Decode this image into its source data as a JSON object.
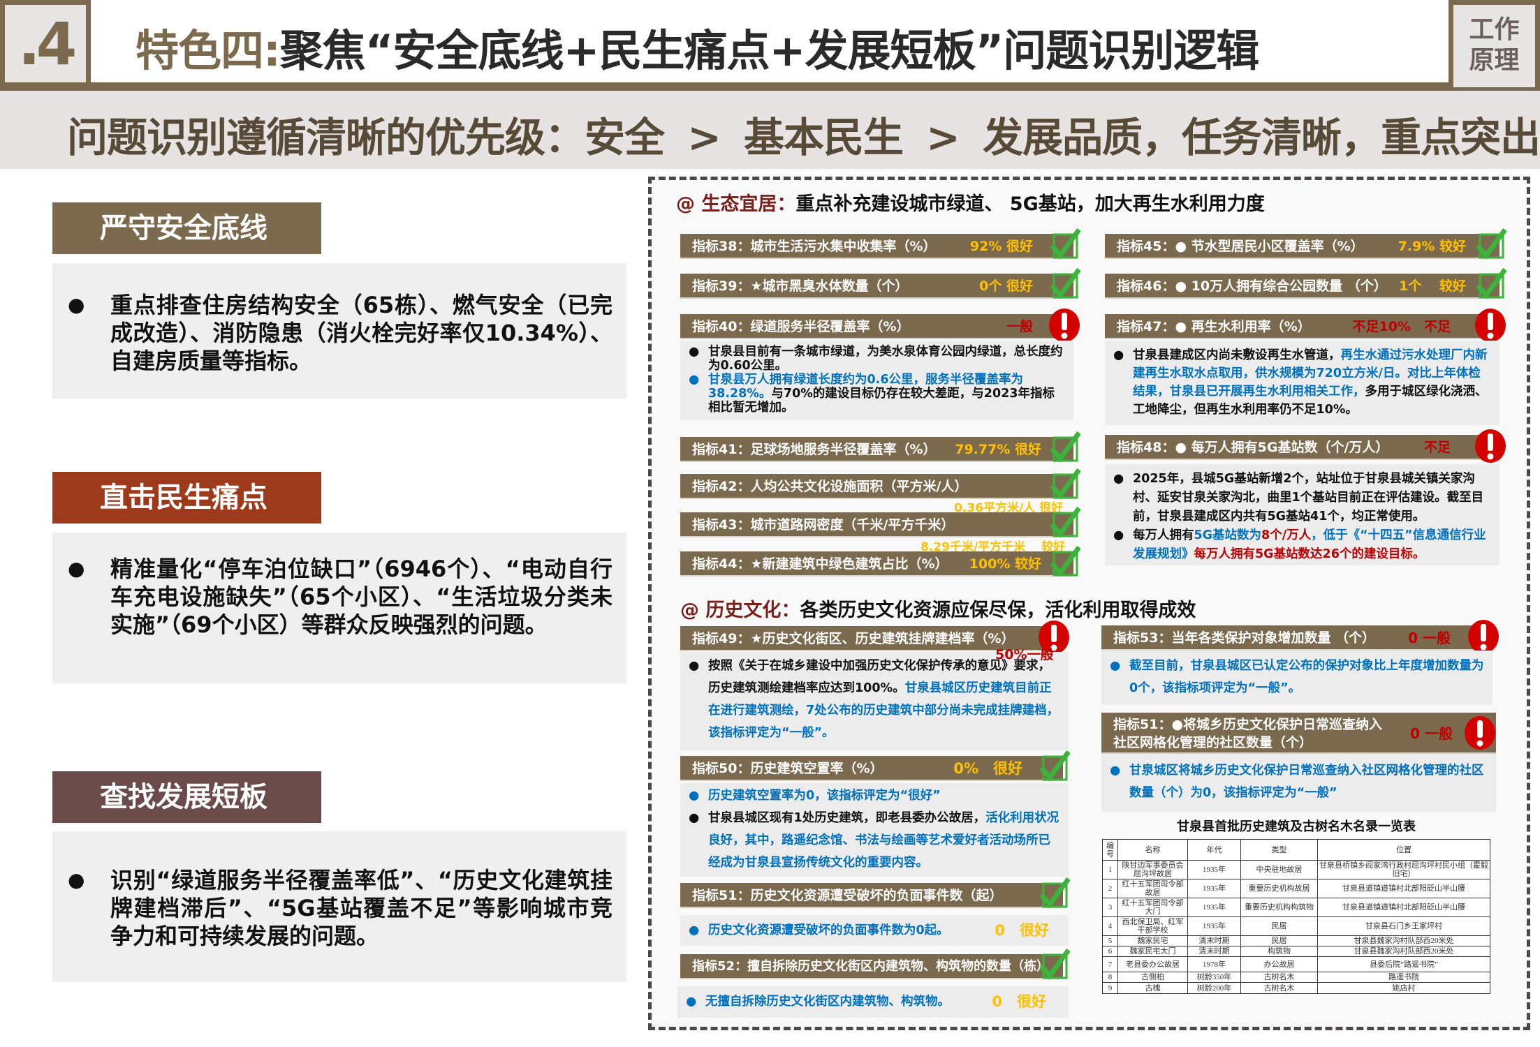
{
  "header": {
    "section_number": ".4",
    "title_prefix": "特色四:",
    "title_main": "聚焦“安全底线+民生痛点+发展短板”问题识别逻辑",
    "tag_line1": "工作",
    "tag_line2": "原理"
  },
  "subheader": {
    "text": "问题识别遵循清晰的优先级：安全 > 基本民生 > 发展品质，任务清晰，重点突出"
  },
  "colors": {
    "brand_brown": "#7b6a4e",
    "livelihood_red": "#9c3a1b",
    "development_mauve": "#6a4b49",
    "good": "#ffc000",
    "bad": "#c00000",
    "blue": "#0070c0",
    "check_green": "#3cb43c"
  },
  "left": {
    "sections": [
      {
        "label": "严守安全底线",
        "body": "重点排查住房结构安全（65栋）、燃气安全（已完成改造）、消防隐患（消火栓完好率仅10.34%）、自建房质量等指标。"
      },
      {
        "label": "直击民生痛点",
        "body": "精准量化“停车泊位缺口”（6946个）、“电动自行车充电设施缺失”（65个小区）、“生活垃圾分类未实施”（69个小区）等群众反映强烈的问题。"
      },
      {
        "label": "查找发展短板",
        "body": "识别“绿道服务半径覆盖率低”、“历史文化建筑挂牌建档滞后”、“5G基站覆盖不足”等影响城市竞争力和可持续发展的问题。"
      }
    ]
  },
  "eco": {
    "tag": "@ 生态宜居：",
    "title": "重点补充建设城市绿道、 5G基站，加大再生水利用力度",
    "indicators": [
      {
        "name": "指标38：城市生活污水集中收集率（%）",
        "value": "92% 很好",
        "status": "good"
      },
      {
        "name": "指标39：★城市黑臭水体数量（个）",
        "value": "0个 很好",
        "status": "good"
      },
      {
        "name": "指标40：绿道服务半径覆盖率（%）",
        "value": "一般",
        "status": "warn"
      },
      {
        "name": "指标41：足球场地服务半径覆盖率（%）",
        "value": "79.77% 很好",
        "status": "good"
      },
      {
        "name": "指标42：人均公共文化设施面积（平方米/人）",
        "value": "0.36平方米/人 很好",
        "status": "good"
      },
      {
        "name": "指标43：城市道路网密度（千米/平方千米）",
        "value": "8.29千米/平方千米　 较好",
        "status": "good"
      },
      {
        "name": "指标44：★新建建筑中绿色建筑占比（%）",
        "value": "100% 较好",
        "status": "good"
      },
      {
        "name": "指标45：● 节水型居民小区覆盖率（%）",
        "value": "7.9% 较好",
        "status": "good"
      },
      {
        "name": "指标46：● 10万人拥有综合公园数量 （个）",
        "value": "1个　 较好",
        "status": "good"
      },
      {
        "name": "指标47：● 再生水利用率（%）",
        "value": "不足10%　不足",
        "status": "warn"
      },
      {
        "name": "指标48：● 每万人拥有5G基站数（个/万人）",
        "value": "不足",
        "status": "warn"
      }
    ],
    "notes": {
      "n40": [
        [
          {
            "t": "甘泉县目前有一条城市绿道，为美水泉体育公园内绿道，总长度约为0.60公里。"
          }
        ],
        [
          {
            "t": "甘泉县万人拥有绿道长度约为0.6公里，服务半径覆盖率为38.28%。"
          },
          {
            "t": "与70%的建设目标仍存在较大差距，与2023年指标相比暂无增加。"
          }
        ]
      ],
      "n47": [
        [
          {
            "t": "甘泉县建成区内尚未敷设再生水管道，"
          },
          {
            "t": "再生水通过污水处理厂内新建再生水取水点取用，供水规模为720立方米/日。对比上年体检结果，甘泉县已开展再生水利用相关工作，"
          },
          {
            "t": "多用于城区绿化浇洒、工地降尘，但再生水利用率仍不足10%。"
          }
        ]
      ],
      "n48": [
        [
          {
            "t": "2025年，县城5G基站新增2个，站址位于甘泉县城关镇关家沟村、延安甘泉关家沟北，曲里1个基站目前正在评估建设。截至目前，甘泉县建成区内共有5G基站41个，均正常使用。"
          }
        ],
        [
          {
            "t": "每万人拥有"
          },
          {
            "t": "5G基站数为"
          },
          {
            "t": "8个/万人"
          },
          {
            "t": "，低于《“十四五”信息通信行业发展规划》"
          },
          {
            "t": "每万人拥有5G基站数达26个的建设目标。"
          }
        ]
      ]
    }
  },
  "hist": {
    "tag": "@ 历史文化：",
    "title": "各类历史文化资源应保尽保，活化利用取得成效",
    "indicators": [
      {
        "name": "指标49：★历史文化街区、历史建筑挂牌建档率（%）",
        "value": "50%一般",
        "status": "warn"
      },
      {
        "name": "指标50：历史建筑空置率（%）",
        "value": "0%　很好",
        "status": "good"
      },
      {
        "name": "指标51：历史文化资源遭受破坏的负面事件数（起）",
        "value": "0　很好",
        "status": "good"
      },
      {
        "name": "指标52：擅自拆除历史文化街区内建筑物、构筑物的数量（栋）",
        "value": "0　很好",
        "status": "good"
      },
      {
        "name": "指标53：当年各类保护对象增加数量 （个）",
        "value": "0 一般",
        "status": "warn"
      },
      {
        "name_line1": "指标51：●将城乡历史文化保护日常巡查纳入",
        "name_line2": "社区网格化管理的社区数量（个）",
        "value": "0 一般",
        "status": "warn"
      }
    ],
    "notes": {
      "n49": [
        [
          {
            "t": "按照《关于在城乡建设中加强历史文化保护传承的意见》要求，历史建筑测绘建档率应达到100%。"
          },
          {
            "t": "甘泉县城区历史建筑目前正在进行建筑测绘，7处公布的历史建筑中部分尚未完成挂牌建档，该指标评定为“一般”。"
          }
        ]
      ],
      "n50": [
        [
          {
            "t": "历史建筑空置率为0，该指标评定为“很好”"
          }
        ],
        [
          {
            "t": "甘泉县城区现有1处历史建筑，即老县委办公故居，"
          },
          {
            "t": "活化利用状况良好，其中，路遥纪念馆、书法与绘画等艺术爱好者活动场所已经成为甘泉县宣扬传统文化的重要内容。"
          }
        ]
      ],
      "n51": "历史文化资源遭受破坏的负面事件数为0起。",
      "n52": "无擅自拆除历史文化街区内建筑物、构筑物。",
      "n53": "截至目前，甘泉县城区已认定公布的保护对象比上年度增加数量为0个，该指标项评定为“一般”。",
      "n51b": "甘泉城区将城乡历史文化保护日常巡查纳入社区网格化管理的社区数量（个）为0，该指标评定为“一般”"
    },
    "table": {
      "title": "甘泉县首批历史建筑及古树名木名录一览表",
      "headers": [
        "编号",
        "名称",
        "年代",
        "类型",
        "位置"
      ],
      "rows": [
        [
          "1",
          "陕甘边军事委员会屈沟坪故居",
          "1935年",
          "中央驻地故居",
          "甘泉县桥镇乡阎家湾行政村屈沟坪村民小组（霍毅旧宅）"
        ],
        [
          "2",
          "红十五军团司令部故居",
          "1935年",
          "重要历史机构故居",
          "甘泉县道镇道镇村北部阳砭山半山腰"
        ],
        [
          "3",
          "红十五军团司令部大门",
          "1935年",
          "重要历史机构构筑物",
          "甘泉县道镇道镇村北部阳砭山半山腰"
        ],
        [
          "4",
          "西北保卫局、红军干部学校",
          "1935年",
          "民居",
          "甘泉县石门乡王家坪村"
        ],
        [
          "5",
          "魏家民宅",
          "清末时期",
          "民居",
          "甘泉县魏家沟村队部西20米处"
        ],
        [
          "6",
          "魏家民宅大门",
          "清末时期",
          "构筑物",
          "甘泉县魏家沟村队部西20米处"
        ],
        [
          "7",
          "老县委办公故居",
          "1978年",
          "办公故居",
          "县委后院“路遥书院”"
        ],
        [
          "8",
          "古侧柏",
          "树龄350年",
          "古树名木",
          "路遥书院"
        ],
        [
          "9",
          "古槐",
          "树龄200年",
          "古树名木",
          "姚店村"
        ]
      ]
    }
  }
}
